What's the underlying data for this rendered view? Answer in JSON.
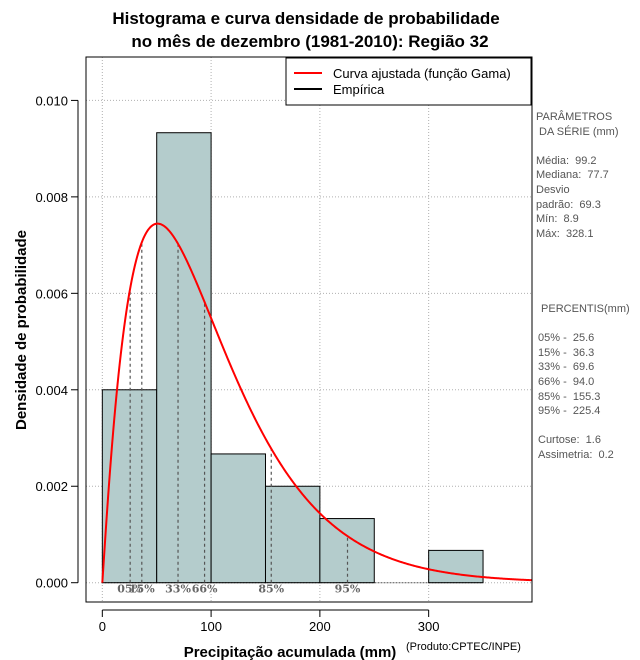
{
  "chart_data": {
    "type": "histogram",
    "title_line1": "Histograma e curva densidade de probabilidade",
    "title_line2": "no mês de dezembro (1981-2010): Região 32",
    "xlabel": "Precipitação acumulada (mm)",
    "ylabel": "Densidade de probabilidade",
    "xlim": [
      -15,
      395
    ],
    "ylim": [
      -0.0004,
      0.0109
    ],
    "x_ticks": [
      0,
      100,
      200,
      300
    ],
    "y_ticks": [
      0.0,
      0.002,
      0.004,
      0.006,
      0.008,
      0.01
    ],
    "y_tick_labels": [
      "0.000",
      "0.002",
      "0.004",
      "0.006",
      "0.008",
      "0.010"
    ],
    "grid": true,
    "bins": [
      {
        "start": 0,
        "end": 50,
        "density": 0.004
      },
      {
        "start": 50,
        "end": 100,
        "density": 0.00933
      },
      {
        "start": 100,
        "end": 150,
        "density": 0.00267
      },
      {
        "start": 150,
        "end": 200,
        "density": 0.002
      },
      {
        "start": 200,
        "end": 250,
        "density": 0.00133
      },
      {
        "start": 250,
        "end": 300,
        "density": 0.0
      },
      {
        "start": 300,
        "end": 350,
        "density": 0.00067
      }
    ],
    "gamma_fit": {
      "shape": 2.05,
      "scale": 48.4
    },
    "percentile_markers": [
      {
        "label": "05%",
        "x": 25.6
      },
      {
        "label": "15%",
        "x": 36.3
      },
      {
        "label": "33%",
        "x": 69.6
      },
      {
        "label": "66%",
        "x": 94.0
      },
      {
        "label": "85%",
        "x": 155.3
      },
      {
        "label": "95%",
        "x": 225.4
      }
    ],
    "legend": [
      {
        "label": "Curva ajustada (função Gama)",
        "color": "#ff0000"
      },
      {
        "label": "Empírica",
        "color": "#000000"
      }
    ],
    "bar_color": "#b4cccc",
    "curve_color": "#ff0000"
  },
  "stats_panel": {
    "lines": [
      "PARÂMETROS",
      " DA SÉRIE (mm)",
      "",
      "Média:  99.2",
      "Mediana:  77.7",
      "Desvio",
      "padrão:  69.3",
      "Mín:  8.9",
      "Máx:  328.1"
    ]
  },
  "percentiles_panel": {
    "lines": [
      " PERCENTIS(mm)",
      "",
      "05% -  25.6",
      "15% -  36.3",
      "33% -  69.6",
      "66% -  94.0",
      "85% -  155.3",
      "95% -  225.4",
      "",
      "Curtose:  1.6",
      "Assimetria:  0.2"
    ]
  },
  "credit": "(Produto:CPTEC/INPE)"
}
